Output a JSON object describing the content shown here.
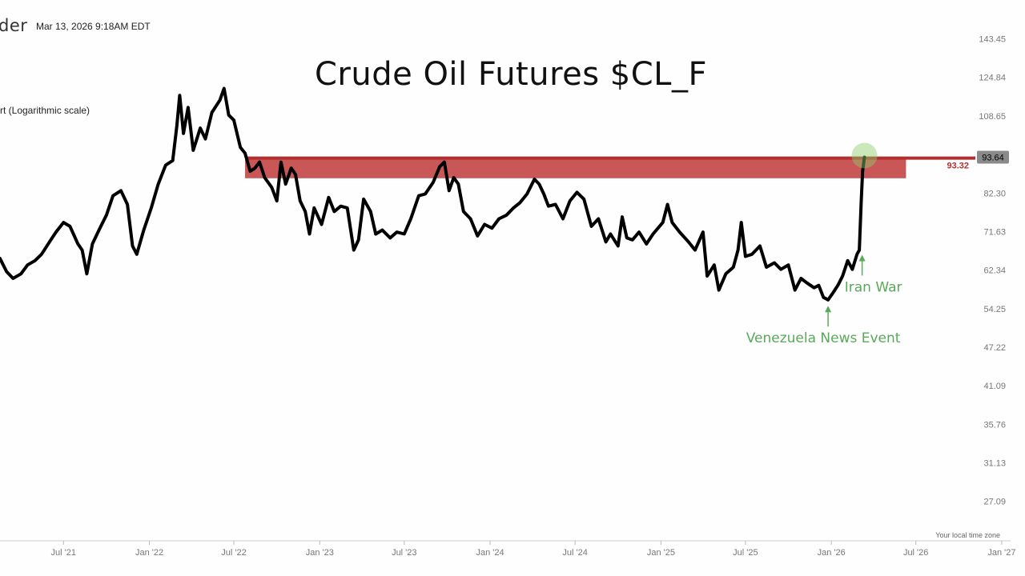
{
  "header": {
    "brand_fragment": "der",
    "timestamp": "Mar 13, 2026 9:18AM EDT",
    "scale_note": "rt (Logarithmic scale)",
    "timezone_note": "Your local time zone"
  },
  "chart_data": {
    "type": "line",
    "title": "Crude Oil Futures $CL_F",
    "y_scale": "log",
    "ylim": [
      23.5,
      165
    ],
    "xlim": [
      "2021-02-15",
      "2027-01-20"
    ],
    "y_ticks": [
      "143.45",
      "124.84",
      "108.65",
      "94.56",
      "82.30",
      "71.63",
      "62.34",
      "54.25",
      "47.22",
      "41.09",
      "35.76",
      "31.13",
      "27.09"
    ],
    "x_ticks": [
      {
        "date": "2021-07-01",
        "label": "Jul '21"
      },
      {
        "date": "2022-01-01",
        "label": "Jan '22"
      },
      {
        "date": "2022-07-01",
        "label": "Jul '22"
      },
      {
        "date": "2023-01-01",
        "label": "Jan '23"
      },
      {
        "date": "2023-07-01",
        "label": "Jul '23"
      },
      {
        "date": "2024-01-01",
        "label": "Jan '24"
      },
      {
        "date": "2024-07-01",
        "label": "Jul '24"
      },
      {
        "date": "2025-01-01",
        "label": "Jan '25"
      },
      {
        "date": "2025-07-01",
        "label": "Jul '25"
      },
      {
        "date": "2026-01-01",
        "label": "Jan '26"
      },
      {
        "date": "2026-07-01",
        "label": "Jul '26"
      },
      {
        "date": "2027-01-01",
        "label": "Jan '27"
      }
    ],
    "series": [
      {
        "color": "#000000",
        "points": [
          [
            "2021-02-15",
            65.0
          ],
          [
            "2021-03-01",
            62.0
          ],
          [
            "2021-03-15",
            60.5
          ],
          [
            "2021-04-01",
            61.5
          ],
          [
            "2021-04-15",
            63.5
          ],
          [
            "2021-05-01",
            64.5
          ],
          [
            "2021-05-15",
            66.0
          ],
          [
            "2021-06-01",
            69.0
          ],
          [
            "2021-06-15",
            71.5
          ],
          [
            "2021-07-01",
            74.0
          ],
          [
            "2021-07-15",
            73.0
          ],
          [
            "2021-08-01",
            68.5
          ],
          [
            "2021-08-10",
            67.0
          ],
          [
            "2021-08-20",
            61.5
          ],
          [
            "2021-09-01",
            68.5
          ],
          [
            "2021-09-15",
            72.0
          ],
          [
            "2021-10-01",
            76.0
          ],
          [
            "2021-10-15",
            81.5
          ],
          [
            "2021-11-01",
            83.0
          ],
          [
            "2021-11-15",
            79.0
          ],
          [
            "2021-11-26",
            68.0
          ],
          [
            "2021-12-05",
            66.0
          ],
          [
            "2021-12-20",
            72.0
          ],
          [
            "2022-01-05",
            78.0
          ],
          [
            "2022-01-20",
            85.0
          ],
          [
            "2022-02-05",
            91.0
          ],
          [
            "2022-02-20",
            92.5
          ],
          [
            "2022-03-01",
            105.0
          ],
          [
            "2022-03-07",
            117.0
          ],
          [
            "2022-03-15",
            102.0
          ],
          [
            "2022-03-25",
            112.0
          ],
          [
            "2022-04-05",
            96.0
          ],
          [
            "2022-04-20",
            104.0
          ],
          [
            "2022-05-01",
            100.0
          ],
          [
            "2022-05-15",
            110.0
          ],
          [
            "2022-06-01",
            115.0
          ],
          [
            "2022-06-10",
            120.0
          ],
          [
            "2022-06-20",
            109.0
          ],
          [
            "2022-07-01",
            107.0
          ],
          [
            "2022-07-15",
            97.0
          ],
          [
            "2022-07-25",
            95.0
          ],
          [
            "2022-08-05",
            89.0
          ],
          [
            "2022-08-15",
            90.0
          ],
          [
            "2022-08-25",
            92.0
          ],
          [
            "2022-09-05",
            87.0
          ],
          [
            "2022-09-20",
            84.0
          ],
          [
            "2022-10-01",
            80.0
          ],
          [
            "2022-10-10",
            92.0
          ],
          [
            "2022-10-20",
            85.0
          ],
          [
            "2022-11-01",
            90.0
          ],
          [
            "2022-11-10",
            88.0
          ],
          [
            "2022-11-20",
            80.0
          ],
          [
            "2022-12-01",
            77.0
          ],
          [
            "2022-12-10",
            71.0
          ],
          [
            "2022-12-20",
            78.0
          ],
          [
            "2023-01-05",
            73.5
          ],
          [
            "2023-01-20",
            81.0
          ],
          [
            "2023-02-01",
            77.0
          ],
          [
            "2023-02-15",
            78.5
          ],
          [
            "2023-03-01",
            78.0
          ],
          [
            "2023-03-15",
            67.0
          ],
          [
            "2023-03-25",
            69.5
          ],
          [
            "2023-04-05",
            80.5
          ],
          [
            "2023-04-20",
            77.0
          ],
          [
            "2023-05-01",
            71.0
          ],
          [
            "2023-05-15",
            72.0
          ],
          [
            "2023-06-01",
            70.0
          ],
          [
            "2023-06-15",
            71.5
          ],
          [
            "2023-07-01",
            71.0
          ],
          [
            "2023-07-15",
            75.0
          ],
          [
            "2023-08-01",
            81.5
          ],
          [
            "2023-08-15",
            82.0
          ],
          [
            "2023-09-01",
            85.5
          ],
          [
            "2023-09-15",
            90.5
          ],
          [
            "2023-09-25",
            92.0
          ],
          [
            "2023-10-05",
            83.0
          ],
          [
            "2023-10-15",
            87.0
          ],
          [
            "2023-10-25",
            85.0
          ],
          [
            "2023-11-05",
            77.0
          ],
          [
            "2023-11-20",
            75.0
          ],
          [
            "2023-12-05",
            70.5
          ],
          [
            "2023-12-20",
            73.5
          ],
          [
            "2024-01-05",
            72.5
          ],
          [
            "2024-01-20",
            75.0
          ],
          [
            "2024-02-05",
            76.0
          ],
          [
            "2024-02-20",
            78.0
          ],
          [
            "2024-03-05",
            79.5
          ],
          [
            "2024-03-20",
            82.0
          ],
          [
            "2024-04-05",
            86.5
          ],
          [
            "2024-04-15",
            85.0
          ],
          [
            "2024-04-25",
            82.0
          ],
          [
            "2024-05-05",
            78.5
          ],
          [
            "2024-05-20",
            79.0
          ],
          [
            "2024-06-05",
            75.0
          ],
          [
            "2024-06-20",
            80.0
          ],
          [
            "2024-07-05",
            82.5
          ],
          [
            "2024-07-20",
            80.5
          ],
          [
            "2024-08-05",
            73.0
          ],
          [
            "2024-08-20",
            75.0
          ],
          [
            "2024-09-05",
            69.0
          ],
          [
            "2024-09-15",
            71.0
          ],
          [
            "2024-10-01",
            68.0
          ],
          [
            "2024-10-10",
            75.5
          ],
          [
            "2024-10-20",
            70.0
          ],
          [
            "2024-11-01",
            69.5
          ],
          [
            "2024-11-15",
            71.5
          ],
          [
            "2024-12-01",
            68.5
          ],
          [
            "2024-12-15",
            71.0
          ],
          [
            "2025-01-05",
            74.0
          ],
          [
            "2025-01-15",
            79.0
          ],
          [
            "2025-01-25",
            74.0
          ],
          [
            "2025-02-10",
            71.5
          ],
          [
            "2025-03-01",
            69.0
          ],
          [
            "2025-03-15",
            67.0
          ],
          [
            "2025-04-01",
            71.5
          ],
          [
            "2025-04-10",
            61.0
          ],
          [
            "2025-04-25",
            63.5
          ],
          [
            "2025-05-05",
            58.0
          ],
          [
            "2025-05-20",
            61.5
          ],
          [
            "2025-06-05",
            63.0
          ],
          [
            "2025-06-15",
            67.0
          ],
          [
            "2025-06-22",
            74.0
          ],
          [
            "2025-07-01",
            65.5
          ],
          [
            "2025-07-15",
            66.0
          ],
          [
            "2025-08-01",
            68.0
          ],
          [
            "2025-08-15",
            63.0
          ],
          [
            "2025-09-01",
            64.0
          ],
          [
            "2025-09-15",
            62.5
          ],
          [
            "2025-10-01",
            63.5
          ],
          [
            "2025-10-15",
            58.0
          ],
          [
            "2025-10-28",
            60.5
          ],
          [
            "2025-11-10",
            59.5
          ],
          [
            "2025-11-25",
            58.5
          ],
          [
            "2025-12-05",
            59.0
          ],
          [
            "2025-12-15",
            56.5
          ],
          [
            "2025-12-25",
            56.0
          ],
          [
            "2026-01-05",
            57.5
          ],
          [
            "2026-01-15",
            59.0
          ],
          [
            "2026-01-25",
            61.0
          ],
          [
            "2026-02-05",
            64.5
          ],
          [
            "2026-02-15",
            62.5
          ],
          [
            "2026-02-25",
            66.0
          ],
          [
            "2026-03-02",
            67.0
          ],
          [
            "2026-03-06",
            80.0
          ],
          [
            "2026-03-09",
            89.0
          ],
          [
            "2026-03-13",
            93.64
          ]
        ]
      }
    ],
    "resistance_zone": {
      "start": "2022-07-25",
      "end": "2026-06-10",
      "low": 86.8,
      "high": 93.32,
      "color": "#c0393b"
    },
    "reference_line": {
      "value": 93.32,
      "label": "93.32",
      "color": "#b03030"
    },
    "last_price": {
      "value": 93.64,
      "label": "93.64",
      "date": "2026-03-13"
    },
    "annotations": [
      {
        "text": "Iran War",
        "date": "2026-03-08",
        "arrow_value": 65.5
      },
      {
        "text": "Venezuela News Event",
        "date": "2025-12-25",
        "arrow_value": 54.5
      }
    ]
  }
}
